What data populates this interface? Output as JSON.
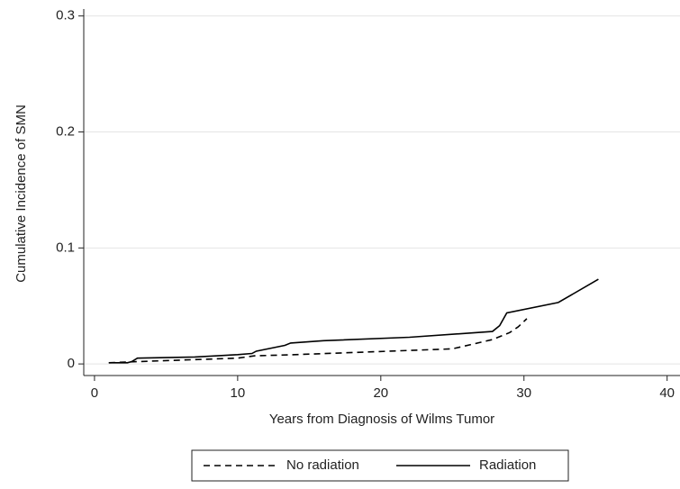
{
  "chart_data": {
    "type": "line",
    "x_label": "Years from Diagnosis of Wilms Tumor",
    "y_label": "Cumulative Incidence of SMN",
    "xlim": [
      -0.75,
      40.9
    ],
    "ylim": [
      -0.01,
      0.306
    ],
    "xticks": [
      0,
      10,
      20,
      30,
      40
    ],
    "yticks": [
      0,
      0.1,
      0.2,
      0.3
    ],
    "grid": true,
    "legend": "bottom",
    "series": [
      {
        "name": "No radiation",
        "color": "#000000",
        "line_style": "dashed",
        "x": [
          1,
          3,
          10,
          11.2,
          14,
          25,
          27.8,
          29,
          29.6,
          30.2
        ],
        "values": [
          0.001,
          0.002,
          0.005,
          0.007,
          0.008,
          0.013,
          0.021,
          0.027,
          0.032,
          0.039
        ]
      },
      {
        "name": "Radiation",
        "color": "#000000",
        "line_style": "solid",
        "x": [
          1,
          2.3,
          2.6,
          3,
          7,
          10,
          11,
          11.3,
          13.3,
          13.7,
          16,
          22,
          27.8,
          28.3,
          28.8,
          32.4,
          35.2
        ],
        "values": [
          0.001,
          0.001,
          0.002,
          0.005,
          0.006,
          0.008,
          0.009,
          0.011,
          0.016,
          0.018,
          0.02,
          0.023,
          0.028,
          0.033,
          0.044,
          0.053,
          0.073
        ]
      }
    ]
  }
}
